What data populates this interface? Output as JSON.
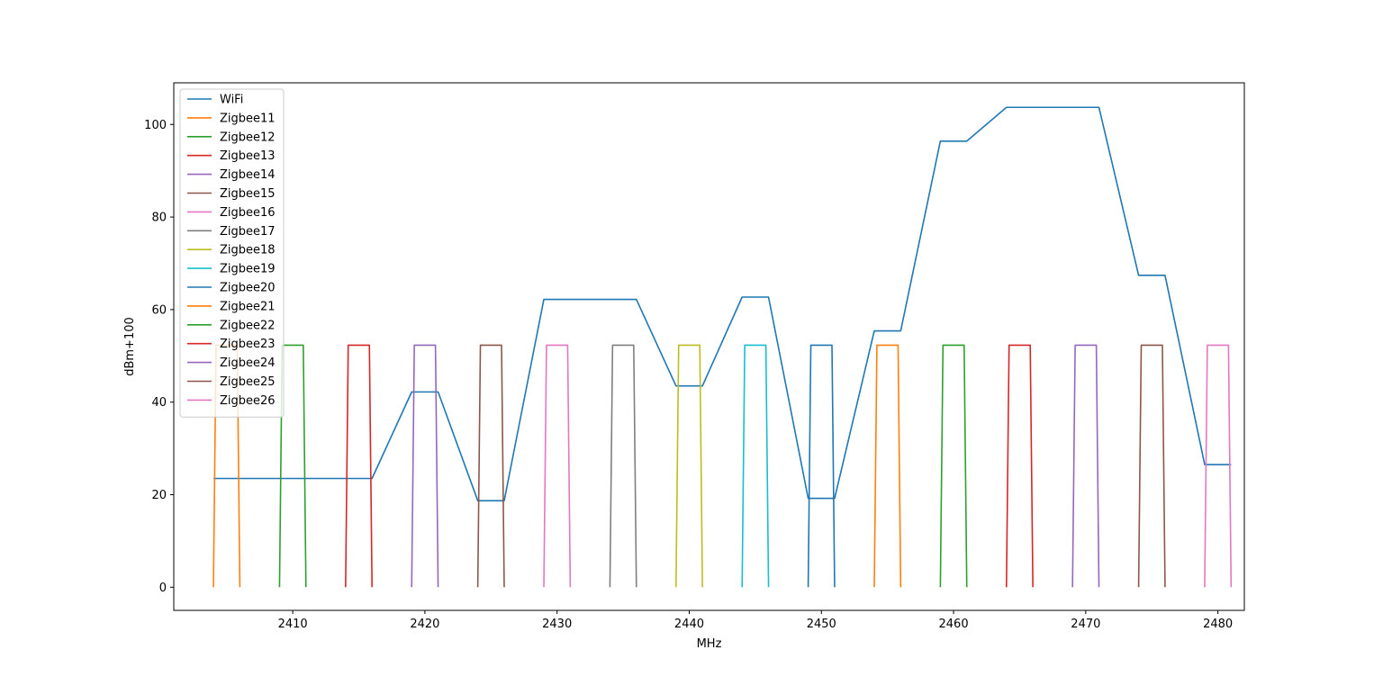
{
  "chart_data": {
    "type": "line",
    "title": "",
    "xlabel": "MHz",
    "ylabel": "dBm+100",
    "xlim": [
      2401,
      2482
    ],
    "ylim": [
      -5,
      109
    ],
    "xticks": [
      2410,
      2420,
      2430,
      2440,
      2450,
      2460,
      2470,
      2480
    ],
    "yticks": [
      0,
      20,
      40,
      60,
      80,
      100
    ],
    "grid": false,
    "legend_position": "top-left",
    "series": [
      {
        "name": "WiFi",
        "color": "#1f77b4",
        "x": [
          2404,
          2416,
          2419,
          2421,
          2424,
          2426,
          2429,
          2436,
          2439,
          2441,
          2444,
          2446,
          2449,
          2451,
          2454,
          2456,
          2459,
          2461,
          2464,
          2471,
          2474,
          2476,
          2479,
          2481
        ],
        "y": [
          23.5,
          23.5,
          42.2,
          42.2,
          18.7,
          18.7,
          62.2,
          62.2,
          43.5,
          43.5,
          62.7,
          62.7,
          19.2,
          19.2,
          55.4,
          55.4,
          96.4,
          96.4,
          103.7,
          103.7,
          67.4,
          67.4,
          26.5,
          26.5
        ]
      },
      {
        "name": "Zigbee11",
        "color": "#ff7f0e",
        "x": [
          2404,
          2404.2,
          2405.8,
          2406
        ],
        "y": [
          0,
          52.3,
          52.3,
          0
        ]
      },
      {
        "name": "Zigbee12",
        "color": "#2ca02c",
        "x": [
          2409,
          2409.2,
          2410.8,
          2411
        ],
        "y": [
          0,
          52.3,
          52.3,
          0
        ]
      },
      {
        "name": "Zigbee13",
        "color": "#d62728",
        "x": [
          2414,
          2414.2,
          2415.8,
          2416
        ],
        "y": [
          0,
          52.3,
          52.3,
          0
        ]
      },
      {
        "name": "Zigbee14",
        "color": "#9467bd",
        "x": [
          2419,
          2419.2,
          2420.8,
          2421
        ],
        "y": [
          0,
          52.3,
          52.3,
          0
        ]
      },
      {
        "name": "Zigbee15",
        "color": "#8c564b",
        "x": [
          2424,
          2424.2,
          2425.8,
          2426
        ],
        "y": [
          0,
          52.3,
          52.3,
          0
        ]
      },
      {
        "name": "Zigbee16",
        "color": "#e377c2",
        "x": [
          2429,
          2429.2,
          2430.8,
          2431
        ],
        "y": [
          0,
          52.3,
          52.3,
          0
        ]
      },
      {
        "name": "Zigbee17",
        "color": "#7f7f7f",
        "x": [
          2434,
          2434.2,
          2435.8,
          2436
        ],
        "y": [
          0,
          52.3,
          52.3,
          0
        ]
      },
      {
        "name": "Zigbee18",
        "color": "#bcbd22",
        "x": [
          2439,
          2439.2,
          2440.8,
          2441
        ],
        "y": [
          0,
          52.3,
          52.3,
          0
        ]
      },
      {
        "name": "Zigbee19",
        "color": "#17becf",
        "x": [
          2444,
          2444.2,
          2445.8,
          2446
        ],
        "y": [
          0,
          52.3,
          52.3,
          0
        ]
      },
      {
        "name": "Zigbee20",
        "color": "#1f77b4",
        "x": [
          2449,
          2449.2,
          2450.8,
          2451
        ],
        "y": [
          0,
          52.3,
          52.3,
          0
        ]
      },
      {
        "name": "Zigbee21",
        "color": "#ff7f0e",
        "x": [
          2454,
          2454.2,
          2455.8,
          2456
        ],
        "y": [
          0,
          52.3,
          52.3,
          0
        ]
      },
      {
        "name": "Zigbee22",
        "color": "#2ca02c",
        "x": [
          2459,
          2459.2,
          2460.8,
          2461
        ],
        "y": [
          0,
          52.3,
          52.3,
          0
        ]
      },
      {
        "name": "Zigbee23",
        "color": "#d62728",
        "x": [
          2464,
          2464.2,
          2465.8,
          2466
        ],
        "y": [
          0,
          52.3,
          52.3,
          0
        ]
      },
      {
        "name": "Zigbee24",
        "color": "#9467bd",
        "x": [
          2469,
          2469.2,
          2470.8,
          2471
        ],
        "y": [
          0,
          52.3,
          52.3,
          0
        ]
      },
      {
        "name": "Zigbee25",
        "color": "#8c564b",
        "x": [
          2474,
          2474.2,
          2475.8,
          2476
        ],
        "y": [
          0,
          52.3,
          52.3,
          0
        ]
      },
      {
        "name": "Zigbee26",
        "color": "#e377c2",
        "x": [
          2479,
          2479.2,
          2480.8,
          2481
        ],
        "y": [
          0,
          52.3,
          52.3,
          0
        ]
      }
    ]
  }
}
